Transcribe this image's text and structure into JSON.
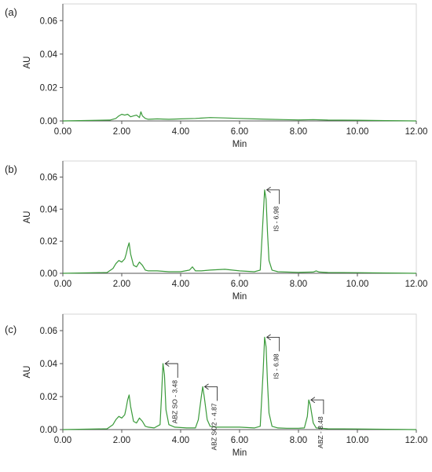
{
  "chart_data": [
    {
      "type": "line",
      "panel_label": "(a)",
      "xlabel": "Min",
      "ylabel": "AU",
      "xlim": [
        0,
        12
      ],
      "ylim": [
        0,
        0.07
      ],
      "xticks": [
        "0.00",
        "2.00",
        "4.00",
        "6.00",
        "8.00",
        "10.00",
        "12.00"
      ],
      "yticks": [
        "0.00",
        "0.02",
        "0.04",
        "0.06"
      ],
      "line_color": "#3a9a3a",
      "grid": false,
      "series": [
        {
          "x": [
            0,
            1.6,
            1.8,
            1.9,
            2.0,
            2.1,
            2.2,
            2.3,
            2.4,
            2.5,
            2.6,
            2.65,
            2.7,
            2.8,
            2.9,
            3.2,
            3.6,
            4.0,
            4.5,
            5.0,
            5.5,
            6.0,
            6.5,
            7.0,
            7.5,
            8.0,
            8.5,
            9.0,
            10.0,
            11.0,
            12.0
          ],
          "y": [
            0,
            0.0005,
            0.0015,
            0.003,
            0.004,
            0.0035,
            0.004,
            0.0025,
            0.003,
            0.0035,
            0.002,
            0.0055,
            0.003,
            0.0015,
            0.001,
            0.0012,
            0.001,
            0.0012,
            0.0015,
            0.002,
            0.0018,
            0.0015,
            0.0012,
            0.001,
            0.0008,
            0.0006,
            0.0008,
            0.0005,
            0.0004,
            0.0002,
            0
          ]
        }
      ],
      "annotations": []
    },
    {
      "type": "line",
      "panel_label": "(b)",
      "xlabel": "Min",
      "ylabel": "AU",
      "xlim": [
        0,
        12
      ],
      "ylim": [
        0,
        0.07
      ],
      "xticks": [
        "0.00",
        "2.00",
        "4.00",
        "6.00",
        "8.00",
        "10.00",
        "12.00"
      ],
      "yticks": [
        "0.00",
        "0.02",
        "0.04",
        "0.06"
      ],
      "line_color": "#3a9a3a",
      "grid": false,
      "series": [
        {
          "x": [
            0,
            1.5,
            1.7,
            1.8,
            1.9,
            2.0,
            2.1,
            2.15,
            2.2,
            2.25,
            2.3,
            2.4,
            2.5,
            2.6,
            2.7,
            2.8,
            2.9,
            3.2,
            3.6,
            4.0,
            4.3,
            4.4,
            4.5,
            4.7,
            5.0,
            5.5,
            6.0,
            6.5,
            6.7,
            6.8,
            6.85,
            6.9,
            6.95,
            7.0,
            7.1,
            7.3,
            7.6,
            8.0,
            8.5,
            8.6,
            8.7,
            9.0,
            10.0,
            11.0,
            12.0
          ],
          "y": [
            0,
            0.0005,
            0.003,
            0.006,
            0.008,
            0.007,
            0.009,
            0.012,
            0.016,
            0.019,
            0.012,
            0.005,
            0.004,
            0.007,
            0.005,
            0.002,
            0.0015,
            0.0015,
            0.001,
            0.001,
            0.002,
            0.004,
            0.0015,
            0.0015,
            0.002,
            0.0025,
            0.0015,
            0.001,
            0.002,
            0.035,
            0.052,
            0.046,
            0.025,
            0.008,
            0.002,
            0.001,
            0.0008,
            0.0006,
            0.0008,
            0.0015,
            0.0008,
            0.0005,
            0.0004,
            0.0002,
            0
          ]
        }
      ],
      "annotations": [
        {
          "text": "IS - 6.98",
          "x": 6.87,
          "y": 0.052
        }
      ]
    },
    {
      "type": "line",
      "panel_label": "(c)",
      "xlabel": "Min",
      "ylabel": "AU",
      "xlim": [
        0,
        12
      ],
      "ylim": [
        0,
        0.07
      ],
      "xticks": [
        "0.00",
        "2.00",
        "4.00",
        "6.00",
        "8.00",
        "10.00",
        "12.00"
      ],
      "yticks": [
        "0.00",
        "0.02",
        "0.04",
        "0.06"
      ],
      "line_color": "#3a9a3a",
      "grid": false,
      "series": [
        {
          "x": [
            0,
            1.5,
            1.7,
            1.8,
            1.9,
            2.0,
            2.1,
            2.15,
            2.2,
            2.25,
            2.3,
            2.4,
            2.5,
            2.6,
            2.7,
            2.8,
            2.9,
            3.1,
            3.3,
            3.35,
            3.4,
            3.45,
            3.5,
            3.6,
            3.8,
            4.2,
            4.5,
            4.6,
            4.7,
            4.75,
            4.8,
            4.9,
            5.0,
            5.2,
            5.5,
            6.0,
            6.5,
            6.7,
            6.8,
            6.85,
            6.9,
            6.95,
            7.0,
            7.1,
            7.3,
            7.6,
            8.0,
            8.2,
            8.3,
            8.35,
            8.4,
            8.5,
            8.6,
            8.8,
            9.0,
            10.0,
            11.0,
            12.0
          ],
          "y": [
            0,
            0.0005,
            0.003,
            0.006,
            0.008,
            0.007,
            0.009,
            0.013,
            0.018,
            0.021,
            0.014,
            0.005,
            0.004,
            0.007,
            0.005,
            0.002,
            0.0015,
            0.001,
            0.003,
            0.02,
            0.04,
            0.033,
            0.012,
            0.003,
            0.0015,
            0.001,
            0.001,
            0.006,
            0.02,
            0.026,
            0.02,
            0.006,
            0.002,
            0.0015,
            0.0015,
            0.0015,
            0.001,
            0.002,
            0.035,
            0.056,
            0.05,
            0.028,
            0.01,
            0.002,
            0.001,
            0.0008,
            0.0008,
            0.001,
            0.008,
            0.018,
            0.015,
            0.004,
            0.001,
            0.0008,
            0.0005,
            0.0004,
            0.0002,
            0
          ]
        }
      ],
      "annotations": [
        {
          "text": "ABZ SO - 3.48",
          "x": 3.42,
          "y": 0.04
        },
        {
          "text": "ABZ SO2 - 4.87",
          "x": 4.76,
          "y": 0.026
        },
        {
          "text": "IS - 6.98",
          "x": 6.87,
          "y": 0.056
        },
        {
          "text": "ABZ - 8.48",
          "x": 8.37,
          "y": 0.018
        }
      ]
    }
  ]
}
